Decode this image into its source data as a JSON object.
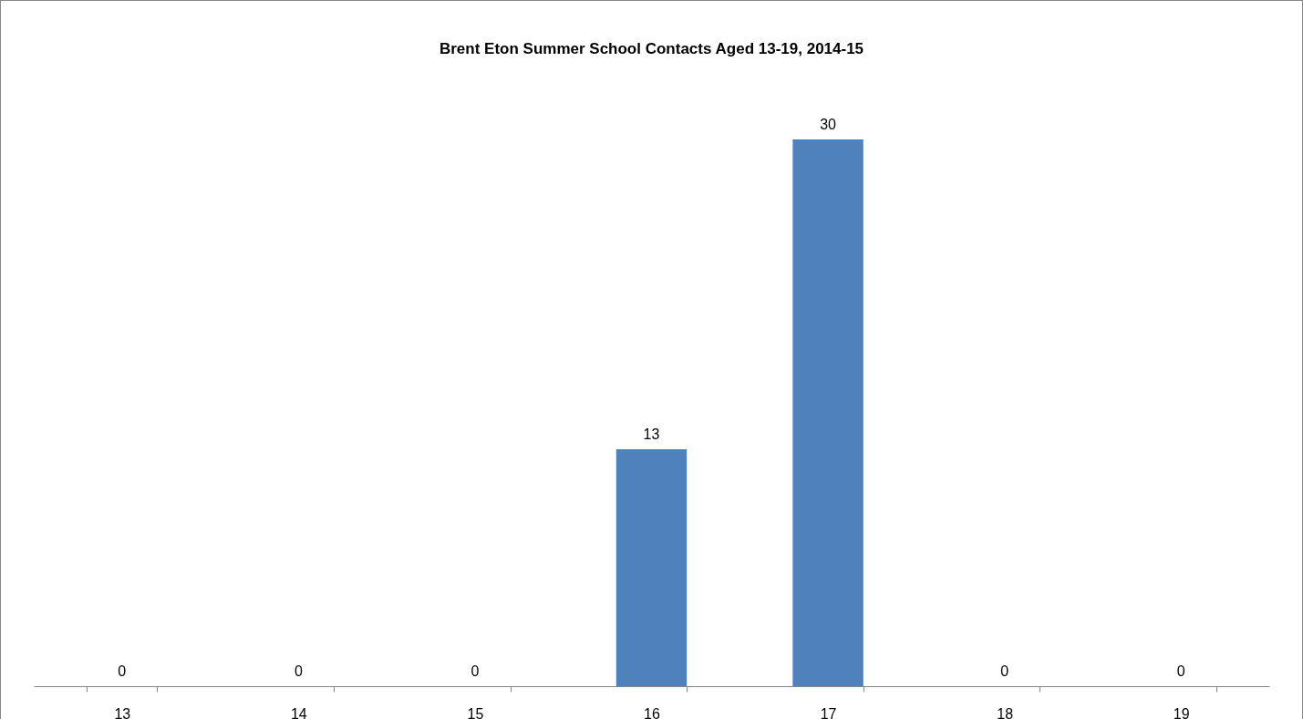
{
  "chart_data": {
    "type": "bar",
    "title": "Brent Eton Summer School Contacts Aged 13-19, 2014-15",
    "categories": [
      "13",
      "14",
      "15",
      "16",
      "17",
      "18",
      "19"
    ],
    "values": [
      0,
      0,
      0,
      13,
      30,
      0,
      0
    ],
    "color": "#4f81bd",
    "data_labels": true
  }
}
